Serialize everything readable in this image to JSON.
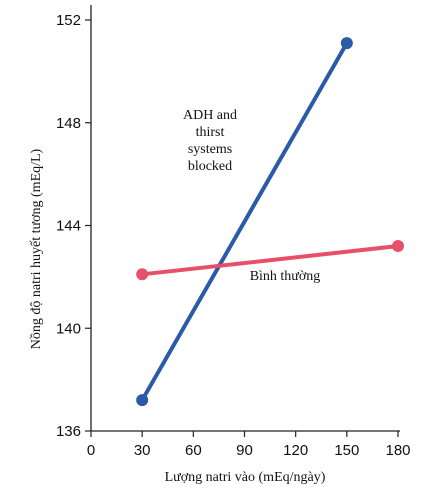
{
  "chart_data": {
    "type": "line",
    "title": "",
    "xlabel": "Lượng natri vào (mEq/ngày)",
    "ylabel": "Nồng độ natri huyết tương (mEq/L)",
    "xlim": [
      0,
      180
    ],
    "ylim": [
      136,
      153
    ],
    "xticks": [
      0,
      30,
      60,
      90,
      120,
      150,
      180
    ],
    "yticks": [
      136,
      140,
      144,
      148,
      152
    ],
    "grid": false,
    "series": [
      {
        "name": "ADH and thirst systems blocked",
        "color": "#2a5aa8",
        "x": [
          30,
          150
        ],
        "y": [
          137.2,
          151.1
        ]
      },
      {
        "name": "Bình thường",
        "color": "#e8506a",
        "x": [
          30,
          180
        ],
        "y": [
          142.1,
          143.2
        ]
      }
    ],
    "annotations": [
      {
        "lines": [
          "ADH and",
          "thirst",
          "systems",
          "blocked"
        ],
        "series": 0
      },
      {
        "lines": [
          "Bình thường"
        ],
        "series": 1
      }
    ]
  }
}
